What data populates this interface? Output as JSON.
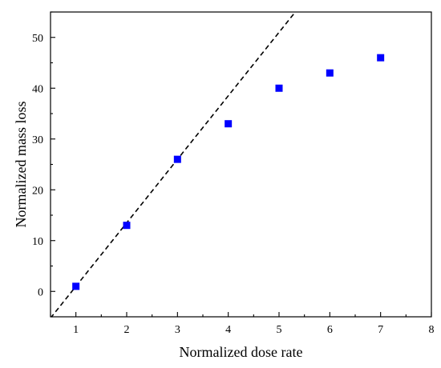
{
  "chart_data": {
    "type": "scatter",
    "title": "",
    "xlabel": "Normalized dose rate",
    "ylabel": "Normalized mass loss",
    "xlim": [
      0.5,
      8
    ],
    "ylim": [
      -5,
      55
    ],
    "x_ticks": [
      1,
      2,
      3,
      4,
      5,
      6,
      7,
      8
    ],
    "y_ticks": [
      0,
      10,
      20,
      30,
      40,
      50
    ],
    "grid": false,
    "legend": "none",
    "series": [
      {
        "marker": "square",
        "color": "#0000ff",
        "x": [
          1,
          2,
          3,
          4,
          5,
          6,
          7
        ],
        "y": [
          1,
          13,
          26,
          33,
          40,
          43,
          46
        ]
      }
    ],
    "reference_line": {
      "style": "dashed",
      "color": "#000000",
      "slope": 12.5,
      "intercept": -11.5
    }
  }
}
